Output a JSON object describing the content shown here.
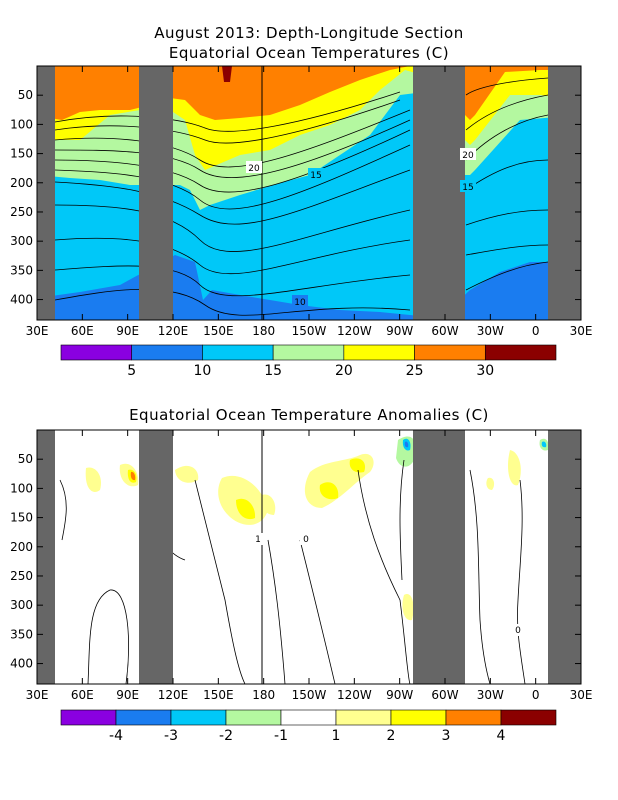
{
  "chart_data": [
    {
      "type": "heatmap",
      "title": "August 2013: Depth-Longitude Section",
      "subtitle": "Equatorial Ocean Temperatures (C)",
      "xlabel": "",
      "ylabel": "",
      "x_ticks": [
        "30E",
        "60E",
        "90E",
        "120E",
        "150E",
        "180",
        "150W",
        "120W",
        "90W",
        "60W",
        "30W",
        "0",
        "30E"
      ],
      "y_ticks": [
        "50",
        "100",
        "150",
        "200",
        "250",
        "300",
        "350",
        "400"
      ],
      "xlim_deg_east": [
        30,
        390
      ],
      "ylim_depth_m": [
        0,
        435
      ],
      "land_masks_deg_east": [
        [
          30,
          45
        ],
        [
          103,
          130
        ],
        [
          280,
          321
        ],
        [
          355,
          360
        ],
        [
          379,
          390
        ]
      ],
      "contour_labels": [
        {
          "text": "20",
          "lon_deg_east": 200,
          "depth_m": 170
        },
        {
          "text": "15",
          "lon_deg_east": 245,
          "depth_m": 180
        },
        {
          "text": "10",
          "lon_deg_east": 225,
          "depth_m": 400
        },
        {
          "text": "20",
          "lon_deg_east": 331,
          "depth_m": 155
        },
        {
          "text": "15",
          "lon_deg_east": 331,
          "depth_m": 195
        }
      ],
      "colorbar": {
        "colors": [
          "#8a00e0",
          "#1a7cf0",
          "#00c8f8",
          "#b4f8a0",
          "#ffff00",
          "#ff8000",
          "#8b0000"
        ],
        "labels": [
          "5",
          "10",
          "15",
          "20",
          "25",
          "30"
        ]
      }
    },
    {
      "type": "heatmap",
      "title": "Equatorial Ocean Temperature Anomalies (C)",
      "xlabel": "",
      "ylabel": "",
      "x_ticks": [
        "30E",
        "60E",
        "90E",
        "120E",
        "150E",
        "180",
        "150W",
        "120W",
        "90W",
        "60W",
        "30W",
        "0",
        "30E"
      ],
      "y_ticks": [
        "50",
        "100",
        "150",
        "200",
        "250",
        "300",
        "350",
        "400"
      ],
      "xlim_deg_east": [
        30,
        390
      ],
      "ylim_depth_m": [
        0,
        435
      ],
      "contour_labels": [
        {
          "text": "1",
          "lon_deg_east": 172,
          "depth_m": 195
        },
        {
          "text": "0",
          "lon_deg_east": 225,
          "depth_m": 200
        },
        {
          "text": "0",
          "lon_deg_east": 355,
          "depth_m": 375
        }
      ],
      "colorbar": {
        "colors": [
          "#8a00e0",
          "#1a7cf0",
          "#00c8f8",
          "#b4f8a0",
          "#ffffff",
          "#ffff90",
          "#ffff00",
          "#ff8000",
          "#8b0000"
        ],
        "labels": [
          "-4",
          "-3",
          "-2",
          "-1",
          "1",
          "2",
          "3",
          "4"
        ]
      }
    }
  ]
}
